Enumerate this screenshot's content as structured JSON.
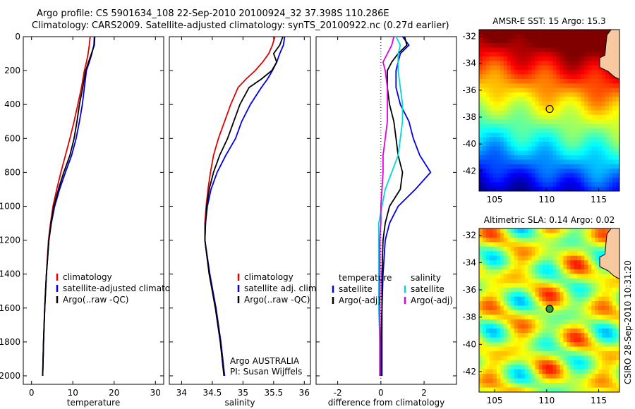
{
  "header": {
    "line1": "Argo profile: CS 5901634_108 22-Sep-2010 20100924_32 37.398S 110.286E",
    "line2": "Climatology: CARS2009. Satellite-adjusted climatology: synTS_20100922.nc (0.27d earlier)"
  },
  "chart_data": [
    {
      "type": "line",
      "panel": "temperature",
      "xlabel": "temperature",
      "ylabel": "",
      "xlim": [
        -2,
        32
      ],
      "ylim": [
        2050,
        0
      ],
      "y_reversed": true,
      "xticks": [
        0,
        10,
        20,
        30
      ],
      "yticks": [
        0,
        200,
        400,
        600,
        800,
        1000,
        1200,
        1400,
        1600,
        1800,
        2000
      ],
      "depth": [
        0,
        50,
        100,
        150,
        200,
        300,
        400,
        500,
        600,
        700,
        800,
        900,
        1000,
        1100,
        1200,
        1400,
        1600,
        1800,
        2000
      ],
      "series": [
        {
          "name": "climatology",
          "color": "#e00000",
          "values": [
            14.2,
            14.0,
            13.7,
            13.3,
            12.8,
            12.1,
            11.2,
            10.3,
            9.3,
            8.2,
            7.1,
            6.1,
            5.2,
            4.6,
            4.1,
            3.6,
            3.2,
            2.9,
            2.7
          ]
        },
        {
          "name": "satellite-adjusted climatology",
          "color": "#0000e0",
          "values": [
            15.2,
            15.1,
            14.6,
            14.0,
            13.3,
            12.8,
            12.3,
            11.6,
            10.8,
            9.7,
            8.2,
            6.8,
            5.6,
            4.8,
            4.2,
            3.6,
            3.2,
            2.9,
            2.7
          ]
        },
        {
          "name": "Argo(..raw -QC)",
          "color": "#000000",
          "values": [
            15.3,
            15.2,
            14.5,
            13.8,
            13.1,
            12.4,
            11.6,
            11.0,
            10.3,
            9.3,
            7.8,
            6.5,
            5.4,
            4.7,
            4.2,
            3.6,
            3.2,
            2.9,
            2.7
          ]
        }
      ],
      "legend": [
        "climatology",
        "satellite-adjusted climatology",
        "Argo(..raw -QC)"
      ]
    },
    {
      "type": "line",
      "panel": "salinity",
      "xlabel": "salinity",
      "xlim": [
        33.8,
        36.1
      ],
      "ylim": [
        2050,
        0
      ],
      "xticks": [
        34,
        34.5,
        35,
        35.5,
        36
      ],
      "depth": [
        0,
        50,
        100,
        150,
        200,
        250,
        300,
        400,
        500,
        600,
        700,
        800,
        900,
        1000,
        1100,
        1200,
        1400,
        1600,
        1800,
        2000
      ],
      "series": [
        {
          "name": "climatology",
          "color": "#e00000",
          "values": [
            35.52,
            35.48,
            35.42,
            35.32,
            35.2,
            35.05,
            34.92,
            34.8,
            34.7,
            34.6,
            34.52,
            34.47,
            34.43,
            34.4,
            34.38,
            34.38,
            34.45,
            34.56,
            34.64,
            34.7
          ]
        },
        {
          "name": "satellite adj. clim.",
          "color": "#0000e0",
          "values": [
            35.68,
            35.66,
            35.6,
            35.55,
            35.48,
            35.4,
            35.3,
            35.12,
            34.98,
            34.88,
            34.72,
            34.58,
            34.48,
            34.42,
            34.39,
            34.38,
            34.46,
            34.56,
            34.64,
            34.7
          ]
        },
        {
          "name": "Argo(..raw -QC)",
          "color": "#000000",
          "values": [
            35.65,
            35.6,
            35.5,
            35.55,
            35.47,
            35.3,
            35.1,
            34.95,
            34.85,
            34.75,
            34.62,
            34.52,
            34.45,
            34.41,
            34.39,
            34.38,
            34.45,
            34.55,
            34.63,
            34.69
          ]
        }
      ],
      "legend": [
        "climatology",
        "satellite adj. clim.",
        "Argo(..raw -QC)"
      ],
      "annotations": [
        "Argo AUSTRALIA",
        "PI: Susan Wijffels"
      ]
    },
    {
      "type": "line",
      "panel": "difference",
      "xlabel": "difference from climatology",
      "xlim": [
        -3,
        3.5
      ],
      "ylim": [
        2050,
        0
      ],
      "xticks": [
        -2,
        0,
        2
      ],
      "depth": [
        0,
        50,
        100,
        150,
        200,
        300,
        400,
        500,
        600,
        700,
        800,
        900,
        1000,
        1100,
        1200,
        1400,
        1600,
        1800,
        2000
      ],
      "series": [
        {
          "name": "temperature satellite",
          "color": "#0000e0",
          "values": [
            1.0,
            1.3,
            0.9,
            0.8,
            0.7,
            0.7,
            0.9,
            1.3,
            1.5,
            1.8,
            2.3,
            1.6,
            0.8,
            0.4,
            0.2,
            0.1,
            0.05,
            0.05,
            0.05
          ]
        },
        {
          "name": "temperature Argo(-adj)",
          "color": "#000000",
          "values": [
            1.1,
            1.2,
            0.8,
            0.5,
            0.3,
            0.3,
            0.4,
            0.6,
            0.7,
            0.8,
            1.0,
            0.9,
            0.4,
            0.2,
            0.1,
            0.05,
            0.05,
            0.0,
            0.0
          ]
        },
        {
          "name": "salinity satellite",
          "color": "#00d8d8",
          "values": [
            0.7,
            0.9,
            0.8,
            0.8,
            0.8,
            0.9,
            1.0,
            1.0,
            0.9,
            0.8,
            0.5,
            0.2,
            0.05,
            -0.1,
            -0.1,
            -0.1,
            -0.1,
            -0.05,
            -0.05
          ]
        },
        {
          "name": "salinity Argo(-adj)",
          "color": "#e000e0",
          "values": [
            0.6,
            0.5,
            0.3,
            0.1,
            0.2,
            0.3,
            0.3,
            0.3,
            0.2,
            0.1,
            0.1,
            0.05,
            0.0,
            0.0,
            -0.05,
            -0.05,
            -0.05,
            -0.05,
            -0.05
          ]
        }
      ],
      "legend_headers": [
        "temperature",
        "salinity"
      ],
      "legend": [
        "satellite",
        "Argo(-adj)",
        "satellite",
        "Argo(-adj)"
      ]
    },
    {
      "type": "heatmap",
      "panel": "sst_map",
      "title": "AMSR-E SST: 15 Argo: 15.3",
      "xlim": [
        103.5,
        117
      ],
      "ylim": [
        -43.5,
        -31.5
      ],
      "xticks": [
        105,
        110,
        115
      ],
      "yticks": [
        -32,
        -34,
        -36,
        -38,
        -40,
        -42
      ],
      "marker": {
        "lon": 110.286,
        "lat": -37.398
      }
    },
    {
      "type": "heatmap",
      "panel": "sla_map",
      "title": "Altimetric SLA: 0.14 Argo: 0.02",
      "xlim": [
        103.5,
        117
      ],
      "ylim": [
        -43.5,
        -31.5
      ],
      "xticks": [
        105,
        110,
        115
      ],
      "yticks": [
        -32,
        -34,
        -36,
        -38,
        -40,
        -42
      ],
      "marker": {
        "lon": 110.286,
        "lat": -37.398
      }
    }
  ],
  "footer": {
    "stamp": "CSIRO 28-Sep-2010 10:31:20"
  }
}
